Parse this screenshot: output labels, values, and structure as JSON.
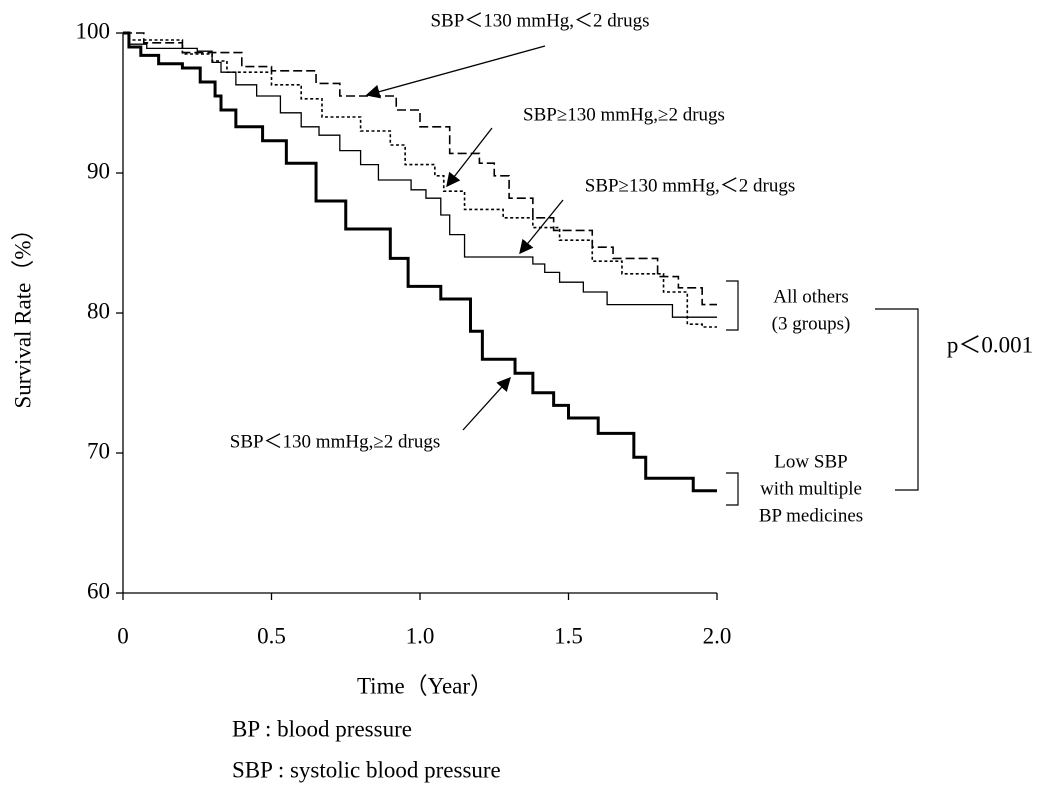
{
  "chart_data": {
    "type": "step",
    "x_label": "Time（Year）",
    "y_label": "Survival Rate（%）",
    "xlim": [
      0,
      2
    ],
    "ylim": [
      60,
      100
    ],
    "xticks": [
      0,
      0.5,
      {
        "value": 1,
        "label": "1.0"
      },
      1.5,
      {
        "value": 2,
        "label": "2.0"
      }
    ],
    "yticks": [
      60,
      70,
      80,
      90,
      100
    ],
    "series": [
      {
        "name": "SBP＜130 mmHg,≥2 drugs",
        "color": "#000000",
        "line_style": "solid",
        "line_width": 3,
        "x": [
          0,
          0.02,
          0.06,
          0.12,
          0.2,
          0.26,
          0.31,
          0.33,
          0.38,
          0.47,
          0.55,
          0.65,
          0.75,
          0.9,
          0.96,
          1.07,
          1.17,
          1.21,
          1.32,
          1.38,
          1.45,
          1.5,
          1.6,
          1.72,
          1.76,
          1.92,
          2
        ],
        "values": [
          100,
          99,
          98.4,
          97.8,
          97.5,
          96.5,
          95.5,
          94.5,
          93.3,
          92.3,
          90.7,
          88,
          86,
          83.9,
          81.9,
          81,
          78.7,
          76.7,
          75.7,
          74.3,
          73.4,
          72.5,
          71.4,
          69.7,
          68.2,
          67.3,
          67.3
        ]
      },
      {
        "name": "SBP＜130 mmHg,＜2 drugs",
        "color": "#000000",
        "line_style": "dashed",
        "line_width": 1.6,
        "x": [
          0,
          0.07,
          0.2,
          0.4,
          0.5,
          0.65,
          0.73,
          0.92,
          1,
          1.1,
          1.2,
          1.25,
          1.3,
          1.38,
          1.45,
          1.58,
          1.65,
          1.8,
          1.87,
          1.95,
          2
        ],
        "values": [
          100,
          99.3,
          98.6,
          97.6,
          97.3,
          96.4,
          95.5,
          94.5,
          93.3,
          91.4,
          90.7,
          89.8,
          88.2,
          86.8,
          85.9,
          84.7,
          83.9,
          82.6,
          81.8,
          80.6,
          80.6
        ]
      },
      {
        "name": "SBP≥130 mmHg,≥2 drugs",
        "color": "#000000",
        "line_style": "dotted",
        "line_width": 1.6,
        "x": [
          0,
          0.02,
          0.2,
          0.3,
          0.35,
          0.5,
          0.6,
          0.67,
          0.8,
          0.9,
          0.95,
          1.05,
          1.08,
          1.15,
          1.28,
          1.38,
          1.47,
          1.58,
          1.68,
          1.82,
          1.9,
          1.95,
          2
        ],
        "values": [
          100,
          99.5,
          98.5,
          98,
          97.2,
          96.3,
          95.3,
          94,
          93,
          92,
          90.6,
          89.8,
          88.7,
          87.4,
          86.8,
          86.1,
          85.2,
          83.7,
          82.8,
          81.5,
          79.2,
          79,
          79
        ]
      },
      {
        "name": "SBP≥130 mmHg,＜2 drugs",
        "color": "#000000",
        "line_style": "solid",
        "line_width": 1.3,
        "x": [
          0,
          0.02,
          0.08,
          0.25,
          0.3,
          0.33,
          0.38,
          0.45,
          0.53,
          0.6,
          0.66,
          0.73,
          0.8,
          0.86,
          0.97,
          1.02,
          1.07,
          1.1,
          1.15,
          1.38,
          1.42,
          1.47,
          1.55,
          1.63,
          1.85,
          2
        ],
        "values": [
          100,
          99.2,
          98.9,
          98.7,
          97.9,
          97.2,
          96.3,
          95.5,
          94.3,
          93.3,
          92.7,
          91.6,
          90.6,
          89.5,
          88.8,
          88.2,
          87,
          85.6,
          84,
          83.5,
          82.9,
          82.2,
          81.5,
          80.6,
          79.7,
          79.7
        ]
      }
    ],
    "group_labels": [
      {
        "lines": [
          "All others",
          "(3 groups)"
        ]
      },
      {
        "lines": [
          "Low SBP",
          "with multiple",
          "BP medicines"
        ]
      }
    ],
    "p_value_label": "p＜0.001",
    "footnotes": [
      "BP : blood pressure",
      "SBP : systolic blood pressure"
    ]
  }
}
